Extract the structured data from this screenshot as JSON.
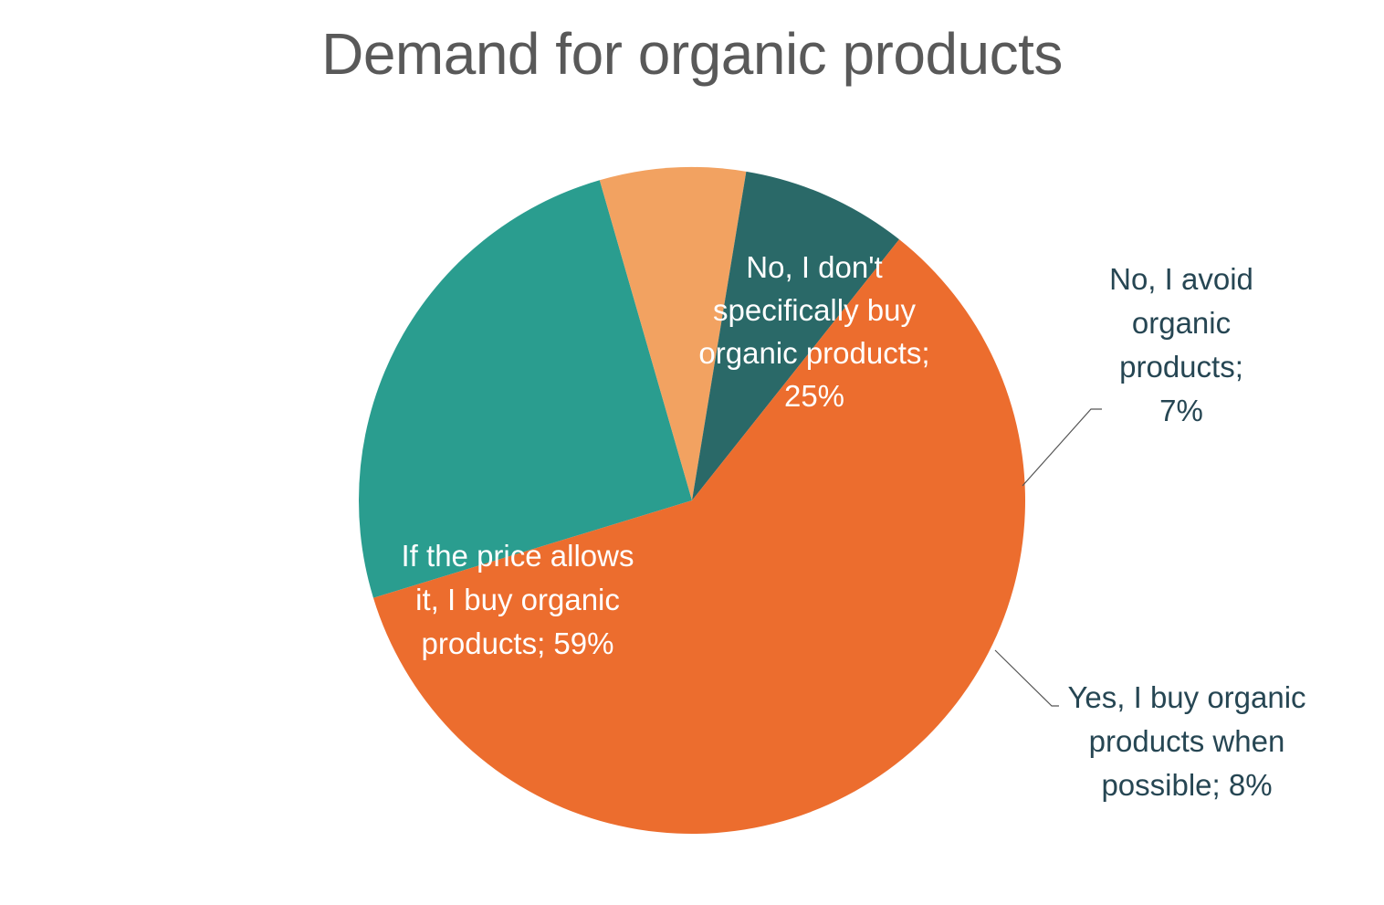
{
  "chart_data": {
    "type": "pie",
    "title": "Demand for organic products",
    "slices": [
      {
        "label": "No, I don't specifically buy organic products",
        "value": 25,
        "value_label": "25%",
        "color": "#2a9d8f",
        "label_color": "#ffffff",
        "label_lines": [
          "No, I don't",
          "specifically buy",
          "organic products;",
          "25%"
        ]
      },
      {
        "label": "No, I avoid organic products",
        "value": 7,
        "value_label": "7%",
        "color": "#f2a261",
        "label_color": "#264653",
        "label_lines": [
          "No, I avoid",
          "organic",
          "products;",
          "7%"
        ]
      },
      {
        "label": "Yes, I buy organic products when possible",
        "value": 8,
        "value_label": "8%",
        "color": "#2a6968",
        "label_color": "#264653",
        "label_lines": [
          "Yes, I buy organic",
          "products when",
          "possible; 8%"
        ]
      },
      {
        "label": "If the price allows it, I buy organic products",
        "value": 59,
        "value_label": "59%",
        "color": "#ec6d2e",
        "label_color": "#ffffff",
        "label_lines": [
          "If the price allows",
          "it, I buy organic",
          "products; 59%"
        ]
      }
    ],
    "legend": "none",
    "data_labels": "category and percentage"
  }
}
